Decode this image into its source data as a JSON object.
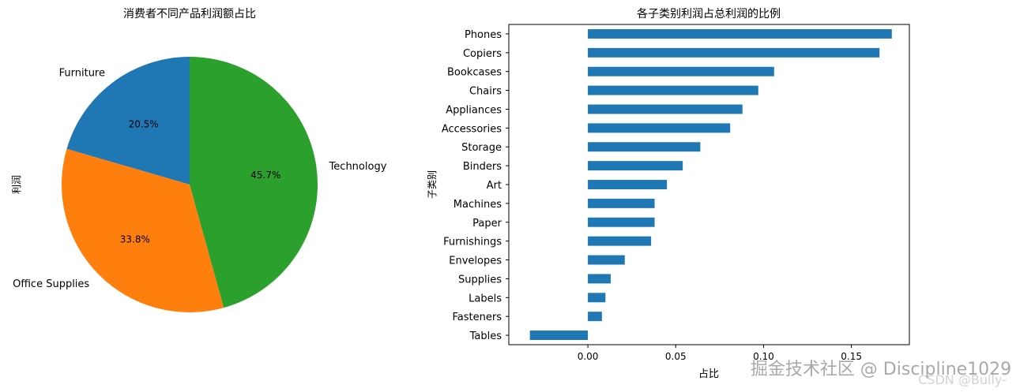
{
  "chart_data": [
    {
      "type": "pie",
      "title": "消费者不同产品利润额占比",
      "ylabel": "利润",
      "slices": [
        {
          "label": "Furniture",
          "value": 20.5,
          "pct_label": "20.5%",
          "color": "#1f77b4"
        },
        {
          "label": "Office Supplies",
          "value": 33.8,
          "pct_label": "33.8%",
          "color": "#ff7f0e"
        },
        {
          "label": "Technology",
          "value": 45.7,
          "pct_label": "45.7%",
          "color": "#2ca02c"
        }
      ],
      "start_angle_deg": 90
    },
    {
      "type": "bar",
      "orientation": "horizontal",
      "title": "各子类别利润占总利润的比例",
      "xlabel": "占比",
      "ylabel": "子类别",
      "bar_color": "#1f77b4",
      "xlim": [
        -0.045,
        0.183
      ],
      "xticks": [
        0.0,
        0.05,
        0.1,
        0.15
      ],
      "xtick_labels": [
        "0.00",
        "0.05",
        "0.10",
        "0.15"
      ],
      "categories": [
        "Phones",
        "Copiers",
        "Bookcases",
        "Chairs",
        "Appliances",
        "Accessories",
        "Storage",
        "Binders",
        "Art",
        "Machines",
        "Paper",
        "Furnishings",
        "Envelopes",
        "Supplies",
        "Labels",
        "Fasteners",
        "Tables"
      ],
      "values": [
        0.173,
        0.166,
        0.106,
        0.097,
        0.088,
        0.081,
        0.064,
        0.054,
        0.045,
        0.038,
        0.038,
        0.036,
        0.021,
        0.013,
        0.01,
        0.008,
        -0.033
      ]
    }
  ],
  "watermarks": {
    "main": "掘金技术社区 @ Discipline1029",
    "csdn": "CSDN @Bully-"
  }
}
